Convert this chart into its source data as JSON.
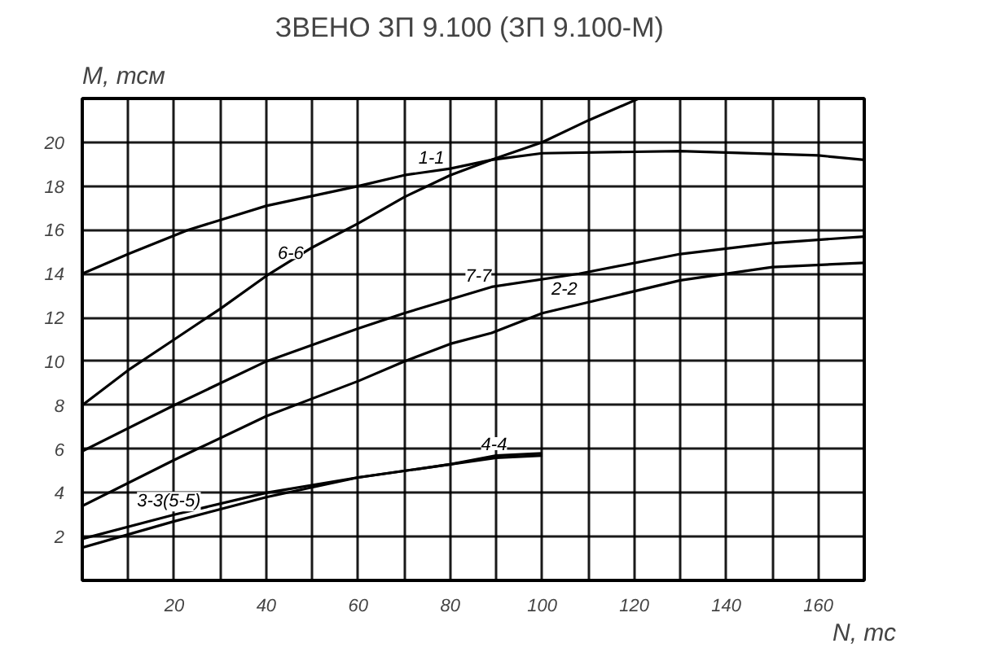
{
  "chart_data": {
    "type": "line",
    "title": "ЗВЕНО  ЗП 9.100 (ЗП 9.100-М)",
    "xlabel": "N, тс",
    "ylabel": "M, тсм",
    "xlim": [
      0,
      170
    ],
    "ylim": [
      0,
      22
    ],
    "xticks": [
      {
        "value": 10,
        "label": null
      },
      20,
      {
        "value": 30,
        "label": null
      },
      40,
      {
        "value": 50,
        "label": null
      },
      60,
      {
        "value": 70,
        "label": null
      },
      80,
      {
        "value": 90,
        "label": null
      },
      100,
      {
        "value": 110,
        "label": null
      },
      120,
      {
        "value": 130,
        "label": null
      },
      140,
      {
        "value": 150,
        "label": null
      },
      160
    ],
    "yticks": [
      2,
      4,
      6,
      8,
      10,
      12,
      14,
      16,
      18,
      20
    ],
    "grid": true,
    "marker": "none",
    "line_style": "solid",
    "series": [
      {
        "name": "1-1",
        "color": "#000000",
        "x": [
          0,
          10,
          23,
          40,
          60,
          70,
          80,
          89,
          100,
          130,
          160,
          170
        ],
        "values": [
          14,
          14.9,
          16,
          17.1,
          18,
          18.5,
          18.8,
          19.2,
          19.5,
          19.6,
          19.4,
          19.2
        ]
      },
      {
        "name": "6-6",
        "color": "#000000",
        "x": [
          0,
          10,
          20,
          30,
          40,
          50,
          60,
          70,
          80,
          89,
          100,
          110,
          121
        ],
        "values": [
          8,
          9.6,
          11,
          12.4,
          13.9,
          15.2,
          16.3,
          17.5,
          18.5,
          19.2,
          20,
          21,
          22
        ]
      },
      {
        "name": "7-7",
        "color": "#000000",
        "x": [
          0,
          20,
          40,
          60,
          70,
          89,
          108,
          130,
          150,
          170
        ],
        "values": [
          5.9,
          8,
          10,
          11.5,
          12.2,
          13.4,
          14,
          14.9,
          15.4,
          15.7
        ]
      },
      {
        "name": "2-2",
        "color": "#000000",
        "x": [
          0,
          20,
          25,
          40,
          60,
          70,
          80,
          89,
          100,
          130,
          150,
          170
        ],
        "values": [
          3.4,
          5.5,
          6,
          7.5,
          9.1,
          10,
          10.8,
          11.3,
          12.2,
          13.7,
          14.3,
          14.5
        ]
      },
      {
        "name": "3-3(5-5)",
        "color": "#000000",
        "x": [
          0,
          20,
          40,
          60,
          80,
          90,
          100
        ],
        "values": [
          1.9,
          3,
          4,
          4.7,
          5.3,
          5.7,
          5.8
        ]
      },
      {
        "name": "4-4",
        "color": "#000000",
        "x": [
          0,
          20,
          40,
          60,
          80,
          90,
          100
        ],
        "values": [
          1.5,
          2.7,
          3.8,
          4.7,
          5.3,
          5.6,
          5.7
        ]
      }
    ]
  }
}
